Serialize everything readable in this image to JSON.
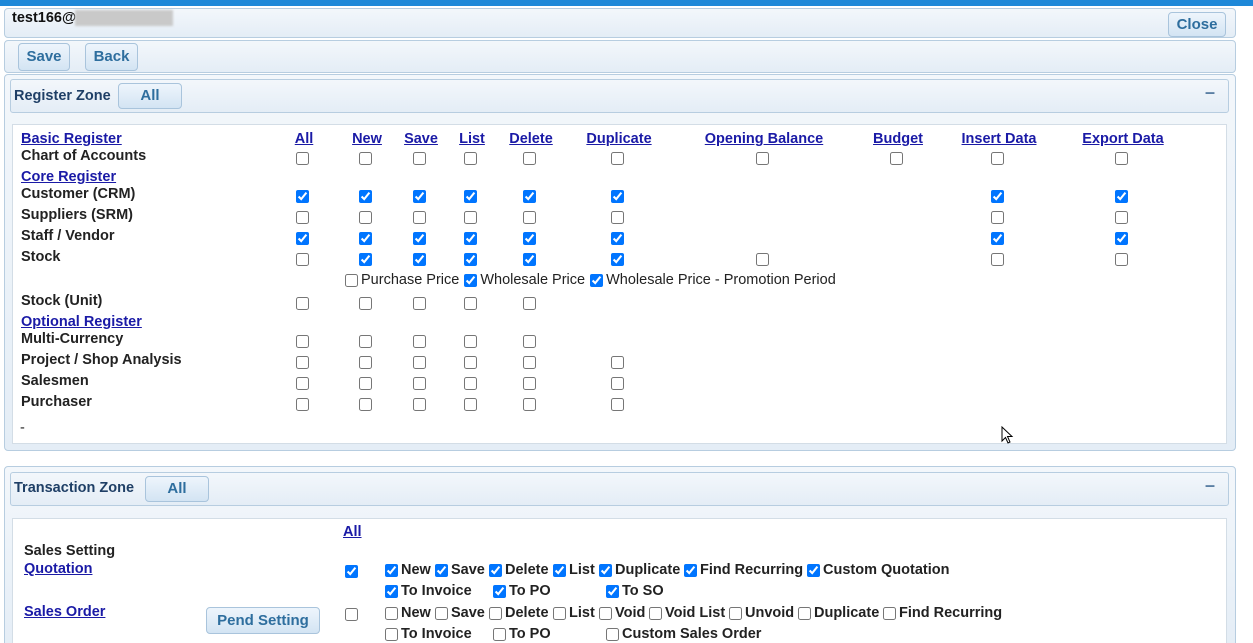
{
  "header": {
    "user": "test166@",
    "close": "Close"
  },
  "toolbar": {
    "save": "Save",
    "back": "Back"
  },
  "register_zone": {
    "title": "Register Zone",
    "all_button": "All",
    "columns": [
      "All",
      "New",
      "Save",
      "List",
      "Delete",
      "Duplicate",
      "Opening Balance",
      "Budget",
      "Insert Data",
      "Export Data"
    ],
    "groups": [
      {
        "title": "Basic Register",
        "rows": [
          {
            "label": "Chart of Accounts",
            "checks": [
              false,
              false,
              false,
              false,
              false,
              false,
              false,
              false,
              false,
              false
            ]
          }
        ]
      },
      {
        "title": "Core Register",
        "rows": [
          {
            "label": "Customer (CRM)",
            "checks": [
              true,
              true,
              true,
              true,
              true,
              true,
              null,
              null,
              true,
              true
            ]
          },
          {
            "label": "Suppliers (SRM)",
            "checks": [
              false,
              false,
              false,
              false,
              false,
              false,
              null,
              null,
              false,
              false
            ]
          },
          {
            "label": "Staff / Vendor",
            "checks": [
              true,
              true,
              true,
              true,
              true,
              true,
              null,
              null,
              true,
              true
            ]
          },
          {
            "label": "Stock",
            "checks": [
              false,
              true,
              true,
              true,
              true,
              true,
              false,
              null,
              false,
              false
            ],
            "options": [
              {
                "label": "Purchase Price",
                "checked": false
              },
              {
                "label": "Wholesale Price",
                "checked": true
              },
              {
                "label": "Wholesale Price - Promotion Period",
                "checked": true
              }
            ]
          },
          {
            "label": "Stock (Unit)",
            "checks": [
              false,
              false,
              false,
              false,
              false,
              null,
              null,
              null,
              null,
              null
            ]
          }
        ]
      },
      {
        "title": "Optional Register",
        "rows": [
          {
            "label": "Multi-Currency",
            "checks": [
              false,
              false,
              false,
              false,
              false,
              null,
              null,
              null,
              null,
              null
            ]
          },
          {
            "label": "Project / Shop Analysis",
            "checks": [
              false,
              false,
              false,
              false,
              false,
              false,
              null,
              null,
              null,
              null
            ]
          },
          {
            "label": "Salesmen",
            "checks": [
              false,
              false,
              false,
              false,
              false,
              false,
              null,
              null,
              null,
              null
            ]
          },
          {
            "label": "Purchaser",
            "checks": [
              false,
              false,
              false,
              false,
              false,
              false,
              null,
              null,
              null,
              null
            ]
          }
        ]
      }
    ],
    "footer": "-"
  },
  "transaction_zone": {
    "title": "Transaction Zone",
    "all_button": "All",
    "all_link": "All",
    "section": "Sales Setting",
    "rows": [
      {
        "label": "Quotation",
        "checked": true,
        "options": [
          [
            {
              "label": "New",
              "checked": true
            },
            {
              "label": "Save",
              "checked": true
            },
            {
              "label": "Delete",
              "checked": true
            },
            {
              "label": "List",
              "checked": true
            },
            {
              "label": "Duplicate",
              "checked": true
            },
            {
              "label": "Find Recurring",
              "checked": true
            },
            {
              "label": "Custom Quotation",
              "checked": true
            }
          ],
          [
            {
              "label": "To Invoice",
              "checked": true
            },
            {
              "label": "To PO",
              "checked": true
            },
            {
              "label": "To SO",
              "checked": true
            }
          ]
        ]
      },
      {
        "label": "Sales Order",
        "button": "Pend Setting",
        "checked": false,
        "options": [
          [
            {
              "label": "New",
              "checked": false
            },
            {
              "label": "Save",
              "checked": false
            },
            {
              "label": "Delete",
              "checked": false
            },
            {
              "label": "List",
              "checked": false
            },
            {
              "label": "Void",
              "checked": false
            },
            {
              "label": "Void List",
              "checked": false
            },
            {
              "label": "Unvoid",
              "checked": false
            },
            {
              "label": "Duplicate",
              "checked": false
            },
            {
              "label": "Find Recurring",
              "checked": false
            }
          ],
          [
            {
              "label": "To Invoice",
              "checked": false
            },
            {
              "label": "To PO",
              "checked": false
            },
            {
              "label": "Custom Sales Order",
              "checked": false
            }
          ]
        ]
      }
    ]
  }
}
